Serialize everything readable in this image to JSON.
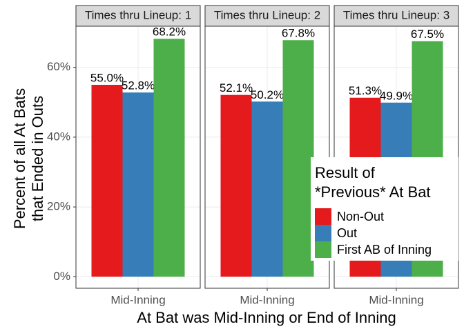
{
  "chart_data": [
    {
      "type": "bar",
      "title": "Times thru Lineup: 1",
      "categories": [
        "Mid-Inning"
      ],
      "series": [
        {
          "name": "Non-Out",
          "color": "#e41a1c",
          "values": [
            55.0
          ],
          "value_labels": [
            "55.0%"
          ]
        },
        {
          "name": "Out",
          "color": "#377eb8",
          "values": [
            52.8
          ],
          "value_labels": [
            "52.8%"
          ]
        },
        {
          "name": "First AB of Inning",
          "color": "#4daf4a",
          "values": [
            68.2
          ],
          "value_labels": [
            "68.2%"
          ]
        }
      ],
      "ylim": [
        -3.3,
        71.8
      ],
      "yticks": [
        {
          "value": 0,
          "label": "0%"
        },
        {
          "value": 20,
          "label": "20%"
        },
        {
          "value": 40,
          "label": "40%"
        },
        {
          "value": 60,
          "label": "60%"
        }
      ],
      "grid": true
    },
    {
      "type": "bar",
      "title": "Times thru Lineup: 2",
      "categories": [
        "Mid-Inning"
      ],
      "series": [
        {
          "name": "Non-Out",
          "color": "#e41a1c",
          "values": [
            52.1
          ],
          "value_labels": [
            "52.1%"
          ]
        },
        {
          "name": "Out",
          "color": "#377eb8",
          "values": [
            50.2
          ],
          "value_labels": [
            "50.2%"
          ]
        },
        {
          "name": "First AB of Inning",
          "color": "#4daf4a",
          "values": [
            67.8
          ],
          "value_labels": [
            "67.8%"
          ]
        }
      ],
      "grid": true
    },
    {
      "type": "bar",
      "title": "Times thru Lineup: 3",
      "categories": [
        "Mid-Inning"
      ],
      "series": [
        {
          "name": "Non-Out",
          "color": "#e41a1c",
          "values": [
            51.3
          ],
          "value_labels": [
            "51.3%"
          ]
        },
        {
          "name": "Out",
          "color": "#377eb8",
          "values": [
            49.9
          ],
          "value_labels": [
            "49.9%"
          ]
        },
        {
          "name": "First AB of Inning",
          "color": "#4daf4a",
          "values": [
            67.5
          ],
          "value_labels": [
            "67.5%"
          ]
        }
      ],
      "grid": true
    }
  ],
  "x_label": "At Bat was Mid-Inning or End of Inning",
  "y_label_lines": [
    "Percent of all At Bats",
    "that Ended in Outs"
  ],
  "legend": {
    "title_lines": [
      "Result of",
      "*Previous* At Bat"
    ],
    "position": "right"
  }
}
